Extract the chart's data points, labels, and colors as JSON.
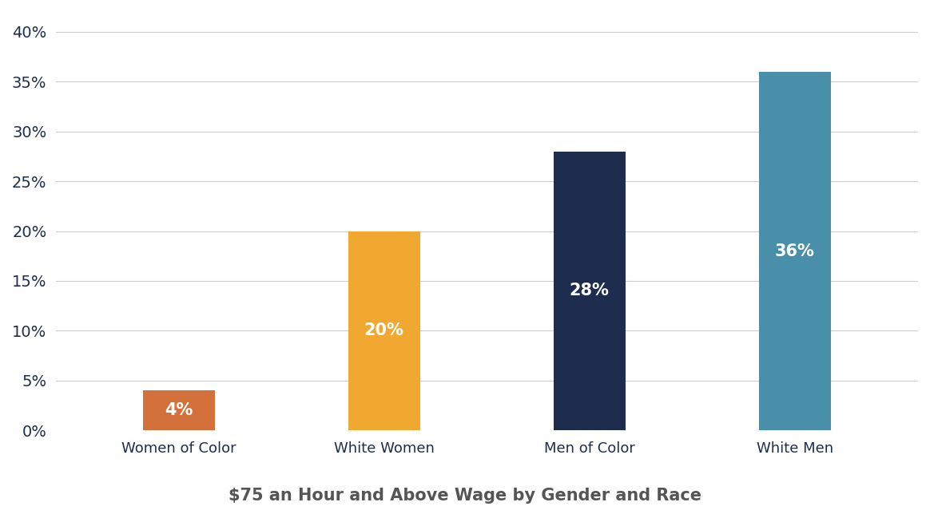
{
  "categories": [
    "Women of Color",
    "White Women",
    "Men of Color",
    "White Men"
  ],
  "values": [
    4,
    20,
    28,
    36
  ],
  "bar_colors": [
    "#D4703A",
    "#F0A830",
    "#1E2D4E",
    "#4A8FAA"
  ],
  "label_colors": [
    "white",
    "white",
    "white",
    "white"
  ],
  "title": "$75 an Hour and Above Wage by Gender and Race",
  "title_fontsize": 15,
  "title_fontweight": "bold",
  "title_color": "#555555",
  "tick_color": "#1E2D4E",
  "ylim": [
    0,
    42
  ],
  "yticks": [
    0,
    5,
    10,
    15,
    20,
    25,
    30,
    35,
    40
  ],
  "background_color": "#ffffff",
  "grid_color": "#cccccc",
  "tick_label_fontsize": 14,
  "bar_label_fontsize": 15,
  "category_fontsize": 13,
  "bar_width": 0.35
}
